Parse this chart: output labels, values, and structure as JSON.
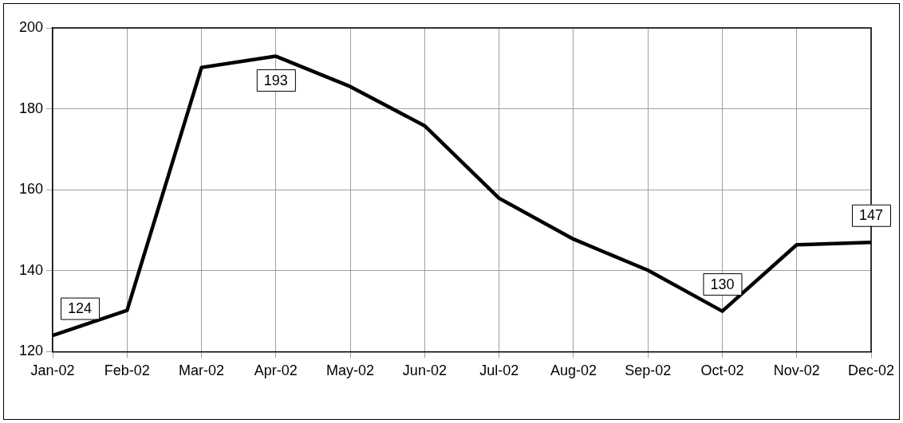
{
  "chart_data": {
    "type": "line",
    "categories": [
      "Jan-02",
      "Feb-02",
      "Mar-02",
      "Apr-02",
      "May-02",
      "Jun-02",
      "Jul-02",
      "Aug-02",
      "Sep-02",
      "Oct-02",
      "Nov-02",
      "Dec-02"
    ],
    "series": [
      {
        "color": "#000000",
        "values": [
          124,
          130.2,
          190.2,
          193,
          185.5,
          175.8,
          157.9,
          147.8,
          140.1,
          130,
          146.4,
          147
        ],
        "value_labels": [
          "124",
          null,
          null,
          "193",
          null,
          null,
          null,
          null,
          null,
          "130",
          null,
          "147"
        ]
      }
    ],
    "ylim": [
      120,
      200
    ],
    "yticks": [
      120,
      140,
      160,
      180,
      200
    ],
    "grid": true,
    "legend": false,
    "marker": "none",
    "line_style": "solid"
  }
}
